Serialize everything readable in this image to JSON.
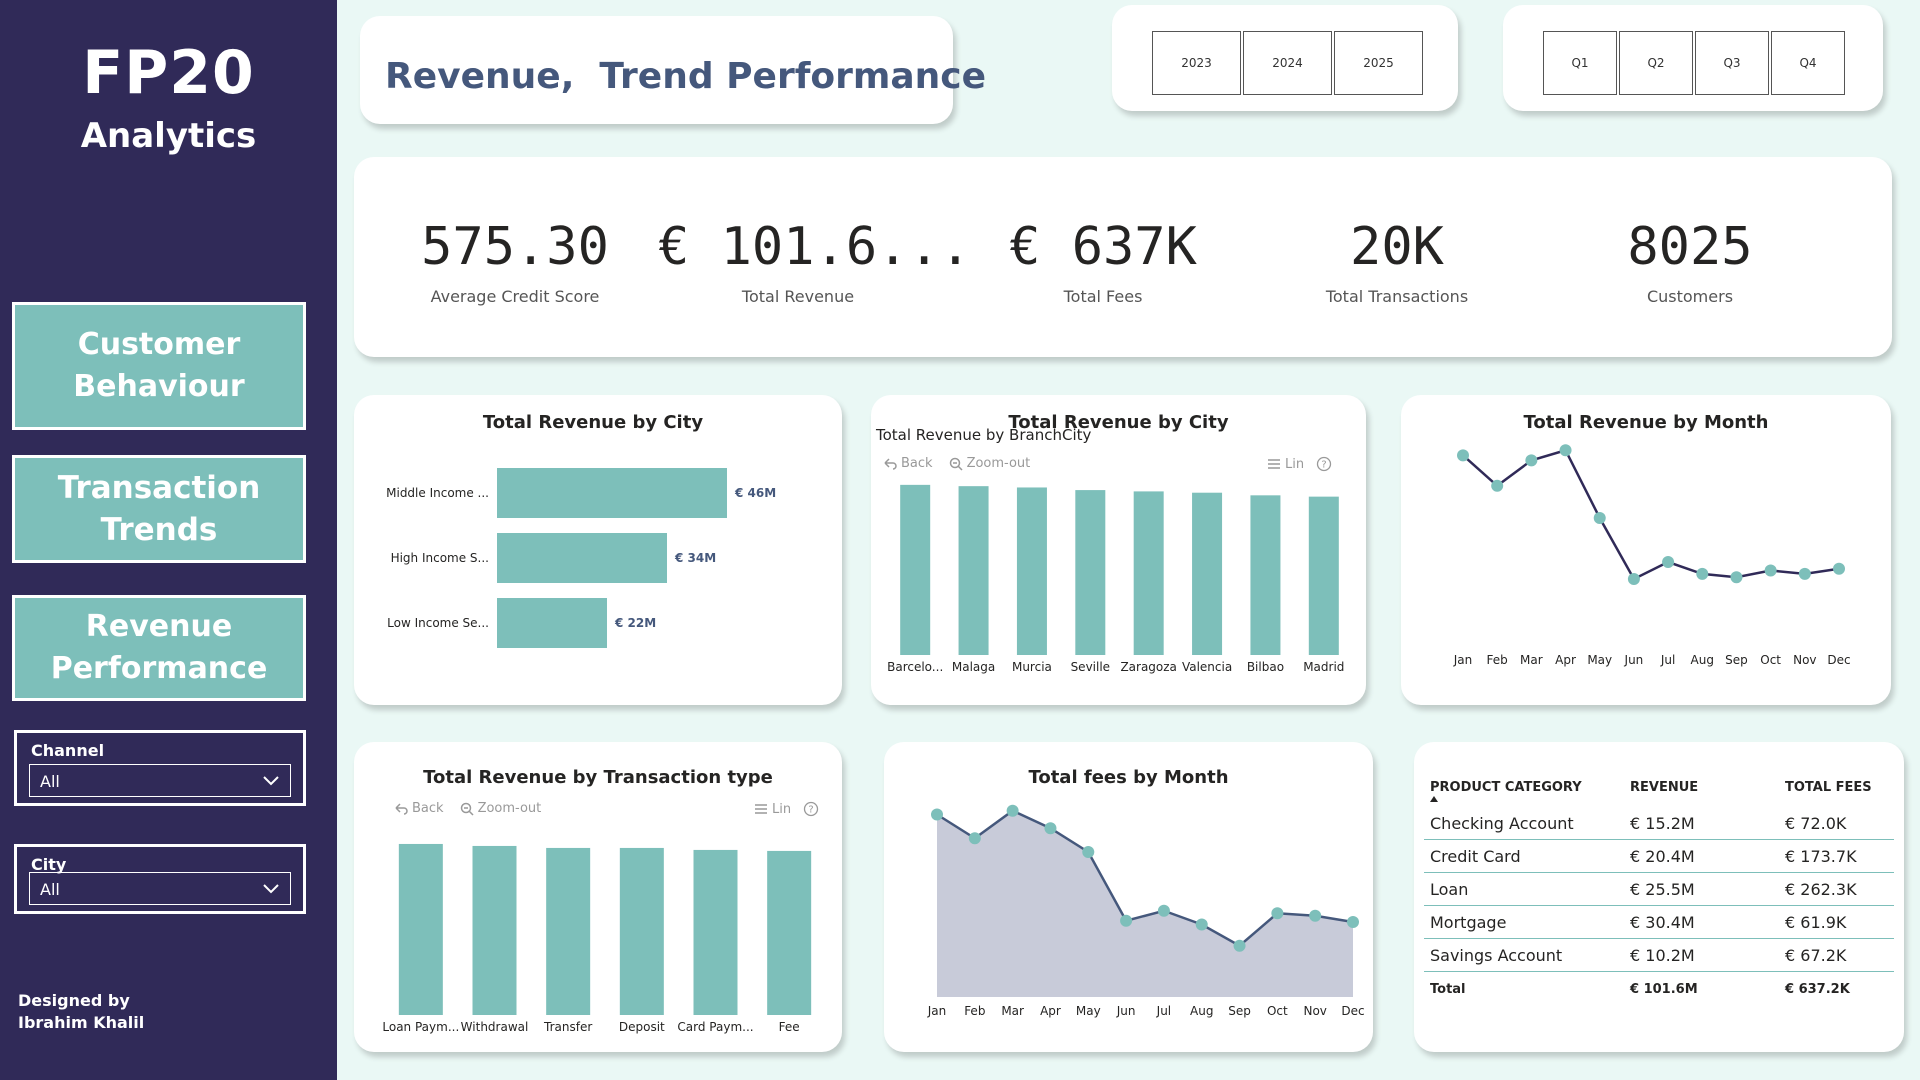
{
  "sidebar": {
    "logo_title": "FP20",
    "logo_sub": "Analytics",
    "nav": [
      "Customer Behaviour",
      "Transaction Trends",
      "Revenue Performance"
    ],
    "slicers": [
      {
        "label": "Channel",
        "value": "All"
      },
      {
        "label": "City",
        "value": "All"
      }
    ],
    "designed_by": [
      "Designed by",
      "Ibrahim Khalil"
    ]
  },
  "header": {
    "title": "Revenue,  Trend Performance",
    "years": [
      "2023",
      "2024",
      "2025"
    ],
    "quarters": [
      "Q1",
      "Q2",
      "Q3",
      "Q4"
    ]
  },
  "kpis": [
    {
      "value": "575.30",
      "label": "Average Credit Score"
    },
    {
      "value": "€ 101.6...",
      "label": "Total Revenue"
    },
    {
      "value": "€ 637K",
      "label": "Total Fees"
    },
    {
      "value": "20K",
      "label": "Total Transactions"
    },
    {
      "value": "8025",
      "label": "Customers"
    }
  ],
  "toolbar": {
    "back": "Back",
    "zoom_out": "Zoom-out",
    "lin": "Lin"
  },
  "chart_data": [
    {
      "type": "bar",
      "orientation": "horizontal",
      "title": "Total Revenue  by City",
      "categories": [
        "Middle Income ...",
        "High Income S...",
        "Low Income Se..."
      ],
      "values": [
        46,
        34,
        22
      ],
      "value_labels": [
        "€ 46M",
        "€ 34M",
        "€ 22M"
      ],
      "xlim": [
        0,
        60
      ],
      "color": "#7dbfba"
    },
    {
      "type": "bar",
      "title": "Total Revenue  by City",
      "overlay_title": "Total Revenue by BranchCity",
      "categories": [
        "Barcelo...",
        "Malaga",
        "Murcia",
        "Seville",
        "Zaragoza",
        "Valencia",
        "Bilbao",
        "Madrid"
      ],
      "values": [
        13.0,
        12.9,
        12.8,
        12.6,
        12.5,
        12.4,
        12.2,
        12.1
      ],
      "ylim": [
        0,
        13.6
      ],
      "color": "#7dbfba"
    },
    {
      "type": "line",
      "title": "Total Revenue  by Month",
      "categories": [
        "Jan",
        "Feb",
        "Mar",
        "Apr",
        "May",
        "Jun",
        "Jul",
        "Aug",
        "Sep",
        "Oct",
        "Nov",
        "Dec"
      ],
      "values": [
        11.2,
        9.4,
        10.9,
        11.5,
        7.5,
        3.9,
        4.9,
        4.2,
        4.0,
        4.4,
        4.2,
        4.5
      ],
      "ylim": [
        0,
        12.4
      ],
      "color": "#302a58",
      "marker_color": "#7dbfba"
    },
    {
      "type": "bar",
      "title": "Total Revenue  by Transaction type",
      "categories": [
        "Loan Paym...",
        "Withdrawal",
        "Transfer",
        "Deposit",
        "Card Paym...",
        "Fee"
      ],
      "values": [
        17.2,
        17.0,
        16.8,
        16.8,
        16.6,
        16.5
      ],
      "ylim": [
        0,
        17.9
      ],
      "color": "#7dbfba"
    },
    {
      "type": "area",
      "title": "Total fees by Month",
      "categories": [
        "Jan",
        "Feb",
        "Mar",
        "Apr",
        "May",
        "Jun",
        "Jul",
        "Aug",
        "Sep",
        "Oct",
        "Nov",
        "Dec"
      ],
      "values": [
        73.0,
        63.5,
        74.5,
        67.5,
        58.0,
        30.5,
        34.5,
        29.0,
        20.5,
        33.5,
        32.5,
        30.0
      ],
      "ylim": [
        0,
        80
      ],
      "color": "#45587c",
      "fill": "#c8cbd9",
      "marker_color": "#7dbfba"
    },
    {
      "type": "table",
      "columns": [
        "PRODUCT CATEGORY",
        "REVENUE",
        "TOTAL FEES"
      ],
      "rows": [
        [
          "Checking Account",
          "€ 15.2M",
          "€ 72.0K"
        ],
        [
          "Credit Card",
          "€ 20.4M",
          "€ 173.7K"
        ],
        [
          "Loan",
          "€ 25.5M",
          "€ 262.3K"
        ],
        [
          "Mortgage",
          "€ 30.4M",
          "€ 61.9K"
        ],
        [
          "Savings Account",
          "€ 10.2M",
          "€ 67.2K"
        ]
      ],
      "total": [
        "Total",
        "€ 101.6M",
        "€ 637.2K"
      ]
    }
  ]
}
